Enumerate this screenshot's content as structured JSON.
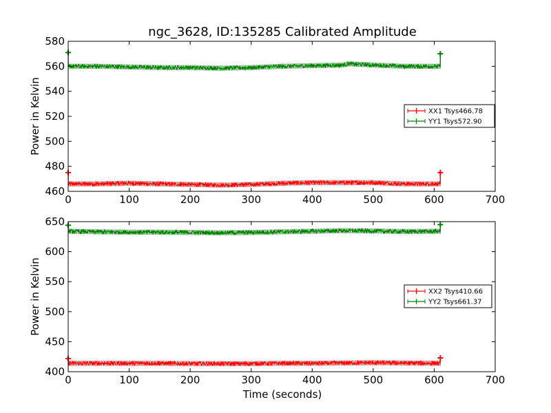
{
  "chart_data": [
    {
      "type": "line",
      "title": "ngc_3628, ID:135285 Calibrated Amplitude",
      "xlabel": "",
      "ylabel": "Power in Kelvin",
      "xlim": [
        0,
        700
      ],
      "ylim": [
        460,
        580
      ],
      "xticks": [
        "0",
        "100",
        "200",
        "300",
        "400",
        "500",
        "600",
        "700"
      ],
      "yticks": [
        "460",
        "480",
        "500",
        "520",
        "540",
        "560",
        "580"
      ],
      "grid": false,
      "legend_position": "center-right",
      "series": [
        {
          "name": "XX1 Tsys466.78",
          "color": "#ff0000",
          "x": [
            0,
            50,
            100,
            150,
            200,
            250,
            300,
            350,
            400,
            450,
            500,
            550,
            610
          ],
          "y": [
            466,
            466,
            466.5,
            466,
            465.5,
            465,
            465.5,
            466.5,
            467,
            467,
            467,
            466,
            466
          ],
          "end_markers": [
            [
              0,
              475
            ],
            [
              610,
              475
            ]
          ]
        },
        {
          "name": "YY1 Tsys572.90",
          "color": "#008000",
          "x": [
            0,
            50,
            100,
            150,
            200,
            250,
            300,
            350,
            400,
            450,
            460,
            500,
            550,
            610
          ],
          "y": [
            560,
            560,
            559.5,
            559,
            559,
            558.5,
            559,
            560,
            560.5,
            561,
            562,
            561,
            560,
            560
          ],
          "end_markers": [
            [
              0,
              571
            ],
            [
              610,
              570
            ]
          ]
        }
      ]
    },
    {
      "type": "line",
      "title": "",
      "xlabel": "Time (seconds)",
      "ylabel": "Power in Kelvin",
      "xlim": [
        0,
        700
      ],
      "ylim": [
        400,
        650
      ],
      "xticks": [
        "0",
        "100",
        "200",
        "300",
        "400",
        "500",
        "600",
        "700"
      ],
      "yticks": [
        "400",
        "450",
        "500",
        "550",
        "600",
        "650"
      ],
      "grid": false,
      "legend_position": "center-right",
      "series": [
        {
          "name": "XX2 Tsys410.66",
          "color": "#ff0000",
          "x": [
            0,
            50,
            100,
            150,
            200,
            250,
            300,
            350,
            400,
            450,
            500,
            550,
            610
          ],
          "y": [
            414,
            414,
            414,
            414,
            413.5,
            413.5,
            413.5,
            414,
            414,
            414.5,
            415,
            414.5,
            414
          ],
          "end_markers": [
            [
              0,
              422
            ],
            [
              610,
              423
            ]
          ]
        },
        {
          "name": "YY2 Tsys661.37",
          "color": "#008000",
          "x": [
            0,
            50,
            100,
            150,
            200,
            250,
            300,
            350,
            400,
            450,
            500,
            550,
            610
          ],
          "y": [
            634,
            633,
            632.5,
            632.5,
            632,
            631.5,
            632,
            633,
            634,
            635,
            634.5,
            633.5,
            634
          ],
          "end_markers": [
            [
              0,
              644
            ],
            [
              610,
              645
            ]
          ]
        }
      ]
    }
  ]
}
